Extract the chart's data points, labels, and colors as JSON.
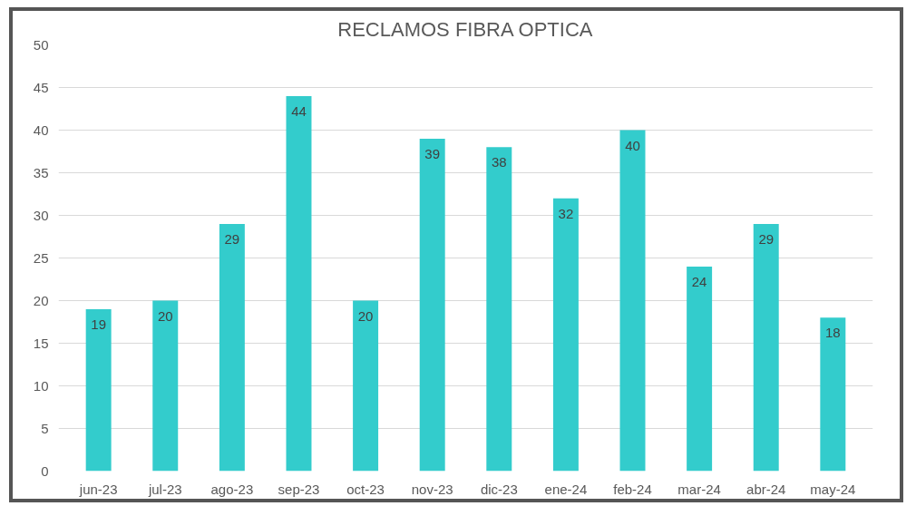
{
  "chart_data": {
    "type": "bar",
    "title": "RECLAMOS FIBRA OPTICA",
    "categories": [
      "jun-23",
      "jul-23",
      "ago-23",
      "sep-23",
      "oct-23",
      "nov-23",
      "dic-23",
      "ene-24",
      "feb-24",
      "mar-24",
      "abr-24",
      "may-24"
    ],
    "values": [
      19,
      20,
      29,
      44,
      20,
      39,
      38,
      32,
      40,
      24,
      29,
      18
    ],
    "color": "#33cccc",
    "ylim": [
      0,
      50
    ],
    "yticks": [
      0,
      5,
      10,
      15,
      20,
      25,
      30,
      35,
      40,
      45,
      50
    ],
    "grid": "y",
    "data_labels": true
  }
}
